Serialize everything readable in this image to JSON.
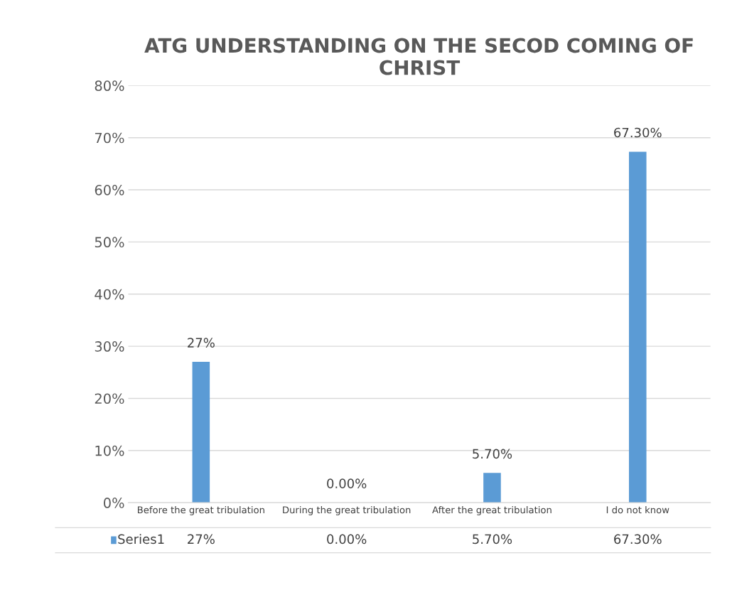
{
  "chart_data": {
    "type": "bar",
    "title": "ATG UNDERSTANDING ON THE SECOD COMING OF CHRIST",
    "categories": [
      "Before the great tribulation",
      "During the great tribulation",
      "After the great tribulation",
      "I do not know"
    ],
    "series": [
      {
        "name": "Series1",
        "color": "#5b9bd5",
        "values": [
          27,
          0,
          5.7,
          67.3
        ],
        "value_labels": [
          "27%",
          "0.00%",
          "5.70%",
          "67.30%"
        ]
      }
    ],
    "ylim": [
      0,
      80
    ],
    "yticks": [
      {
        "value": 0,
        "label": "0%"
      },
      {
        "value": 10,
        "label": "10%"
      },
      {
        "value": 20,
        "label": "20%"
      },
      {
        "value": 30,
        "label": "30%"
      },
      {
        "value": 40,
        "label": "40%"
      },
      {
        "value": 50,
        "label": "50%"
      },
      {
        "value": 60,
        "label": "60%"
      },
      {
        "value": 70,
        "label": "70%"
      },
      {
        "value": 80,
        "label": "80%"
      }
    ],
    "grid": "y",
    "legend": "bottom"
  }
}
